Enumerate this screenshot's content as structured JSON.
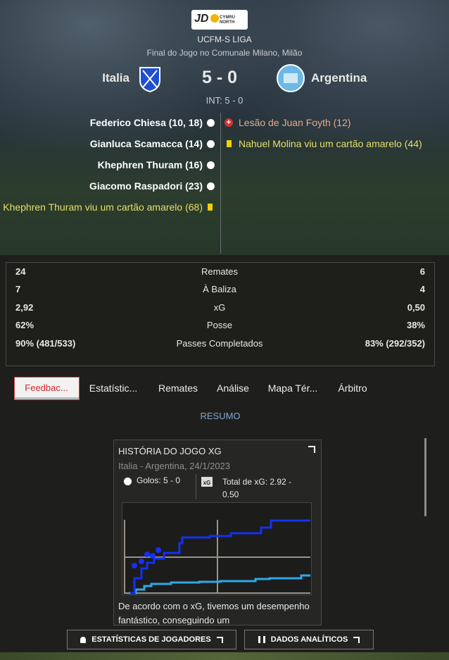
{
  "header": {
    "logo_text": "JD",
    "logo_badge": "CYMRU NORTH",
    "competition": "UCFM-S LIGA",
    "venue": "Final do Jogo no Comunale Milano, Milão",
    "home_team": "Italia",
    "score": "5 - 0",
    "away_team": "Argentina",
    "half_time": "INT: 5 - 0"
  },
  "events": {
    "home": [
      "Federico Chiesa (10, 18)",
      "Gianluca Scamacca (14)",
      "Khephren Thuram (16)",
      "Giacomo Raspadori (23)",
      "Khephren Thuram viu um cartão amarelo (68)"
    ],
    "away": [
      "Lesão de Juan Foyth (12)",
      "Nahuel Molina viu um cartão amarelo (44)"
    ]
  },
  "stats": {
    "rows": [
      [
        "24",
        "Remates",
        "6"
      ],
      [
        "7",
        "À Baliza",
        "4"
      ],
      [
        "2,92",
        "xG",
        "0,50"
      ],
      [
        "62%",
        "Posse",
        "38%"
      ],
      [
        "90% (481/533)",
        "Passes Completados",
        "83% (292/352)"
      ]
    ]
  },
  "tabs": [
    "Feedbac...",
    "Estatístic...",
    "Remates",
    "Análise",
    "Mapa Tér...",
    "Árbitro"
  ],
  "section": "RESUMO",
  "card": {
    "title": "HISTÓRIA DO JOGO XG",
    "subtitle": "Italia - Argentina, 24/1/2023",
    "goals": "Golos: 5 - 0",
    "xg_total": "Total de xG: 2.92 - 0.50",
    "text": "De acordo com o xG, tivemos um desempenho fantástico, conseguindo um"
  },
  "buttons": [
    "ESTATÍSTICAS DE JOGADORES",
    "DADOS ANALÍTICOS"
  ]
}
